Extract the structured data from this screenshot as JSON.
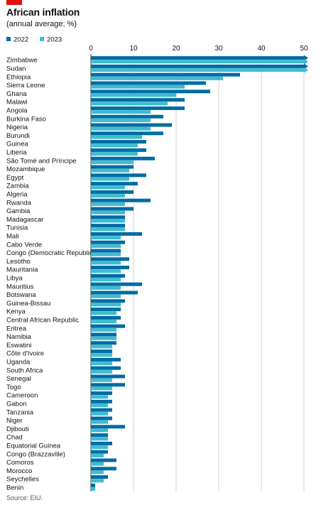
{
  "colors": {
    "accent_red": "#e3120b",
    "series_2022": "#006ba2",
    "series_2023": "#3ebcd2",
    "axis_line": "#333333",
    "grid_line": "#c8c8c8",
    "text": "#121212",
    "source_text": "#555555"
  },
  "chart_data": {
    "type": "bar",
    "orientation": "horizontal",
    "title": "African inflation",
    "subtitle": "(annual average; %)",
    "source": "Source: EIU.",
    "legend_placement": "top-left",
    "grid": true,
    "xlim": [
      0,
      50
    ],
    "xticks": [
      "0",
      "10",
      "20",
      "30",
      "40",
      "50"
    ],
    "xtick_values": [
      0,
      10,
      20,
      30,
      40,
      50
    ],
    "overflow_markers": true,
    "categories": [
      "Zimbabwe",
      "Sudan",
      "Ethiopia",
      "Sierra Leone",
      "Ghana",
      "Malawi",
      "Angola",
      "Burkina Faso",
      "Nigeria",
      "Burundi",
      "Guinea",
      "Liberia",
      "São Tomé and Príncipe",
      "Mozambique",
      "Egypt",
      "Zambia",
      "Algeria",
      "Rwanda",
      "Gambia",
      "Madagascar",
      "Tunisia",
      "Mali",
      "Cabo Verde",
      "Congo (Democratic Republic)",
      "Lesotho",
      "Mauritania",
      "Libya",
      "Mauritius",
      "Botswana",
      "Guinea-Bissau",
      "Kenya",
      "Central African Republic",
      "Eritrea",
      "Namibia",
      "Eswatini",
      "Côte d'Ivoire",
      "Uganda",
      "South Africa",
      "Senegal",
      "Togo",
      "Cameroon",
      "Gabon",
      "Tanzania",
      "Niger",
      "Djibouti",
      "Chad",
      "Equatorial Guinea",
      "Congo (Brazzaville)",
      "Comoros",
      "Morocco",
      "Seychelles",
      "Benin"
    ],
    "series": [
      {
        "name": "2022",
        "values": [
          52,
          52,
          35,
          27,
          28,
          22,
          22,
          17,
          19,
          17,
          13,
          13,
          15,
          10,
          13,
          11,
          10,
          14,
          10,
          8,
          8,
          12,
          8,
          7,
          9,
          9,
          8,
          12,
          11,
          8,
          7,
          7,
          8,
          6,
          6,
          5,
          7,
          7,
          8,
          8,
          5,
          5,
          5,
          5,
          8,
          4,
          5,
          4,
          6,
          6,
          4,
          1
        ]
      },
      {
        "name": "2023",
        "values": [
          52,
          52,
          31,
          22,
          20,
          18,
          14,
          14,
          14,
          12,
          11,
          11,
          10,
          9,
          9,
          8,
          8,
          8,
          8,
          8,
          8,
          7,
          7,
          7,
          7,
          7,
          7,
          7,
          7,
          7,
          6,
          6,
          6,
          6,
          5,
          5,
          5,
          5,
          5,
          5,
          4,
          4,
          4,
          4,
          4,
          4,
          4,
          3,
          3,
          3,
          3,
          1
        ]
      }
    ]
  }
}
